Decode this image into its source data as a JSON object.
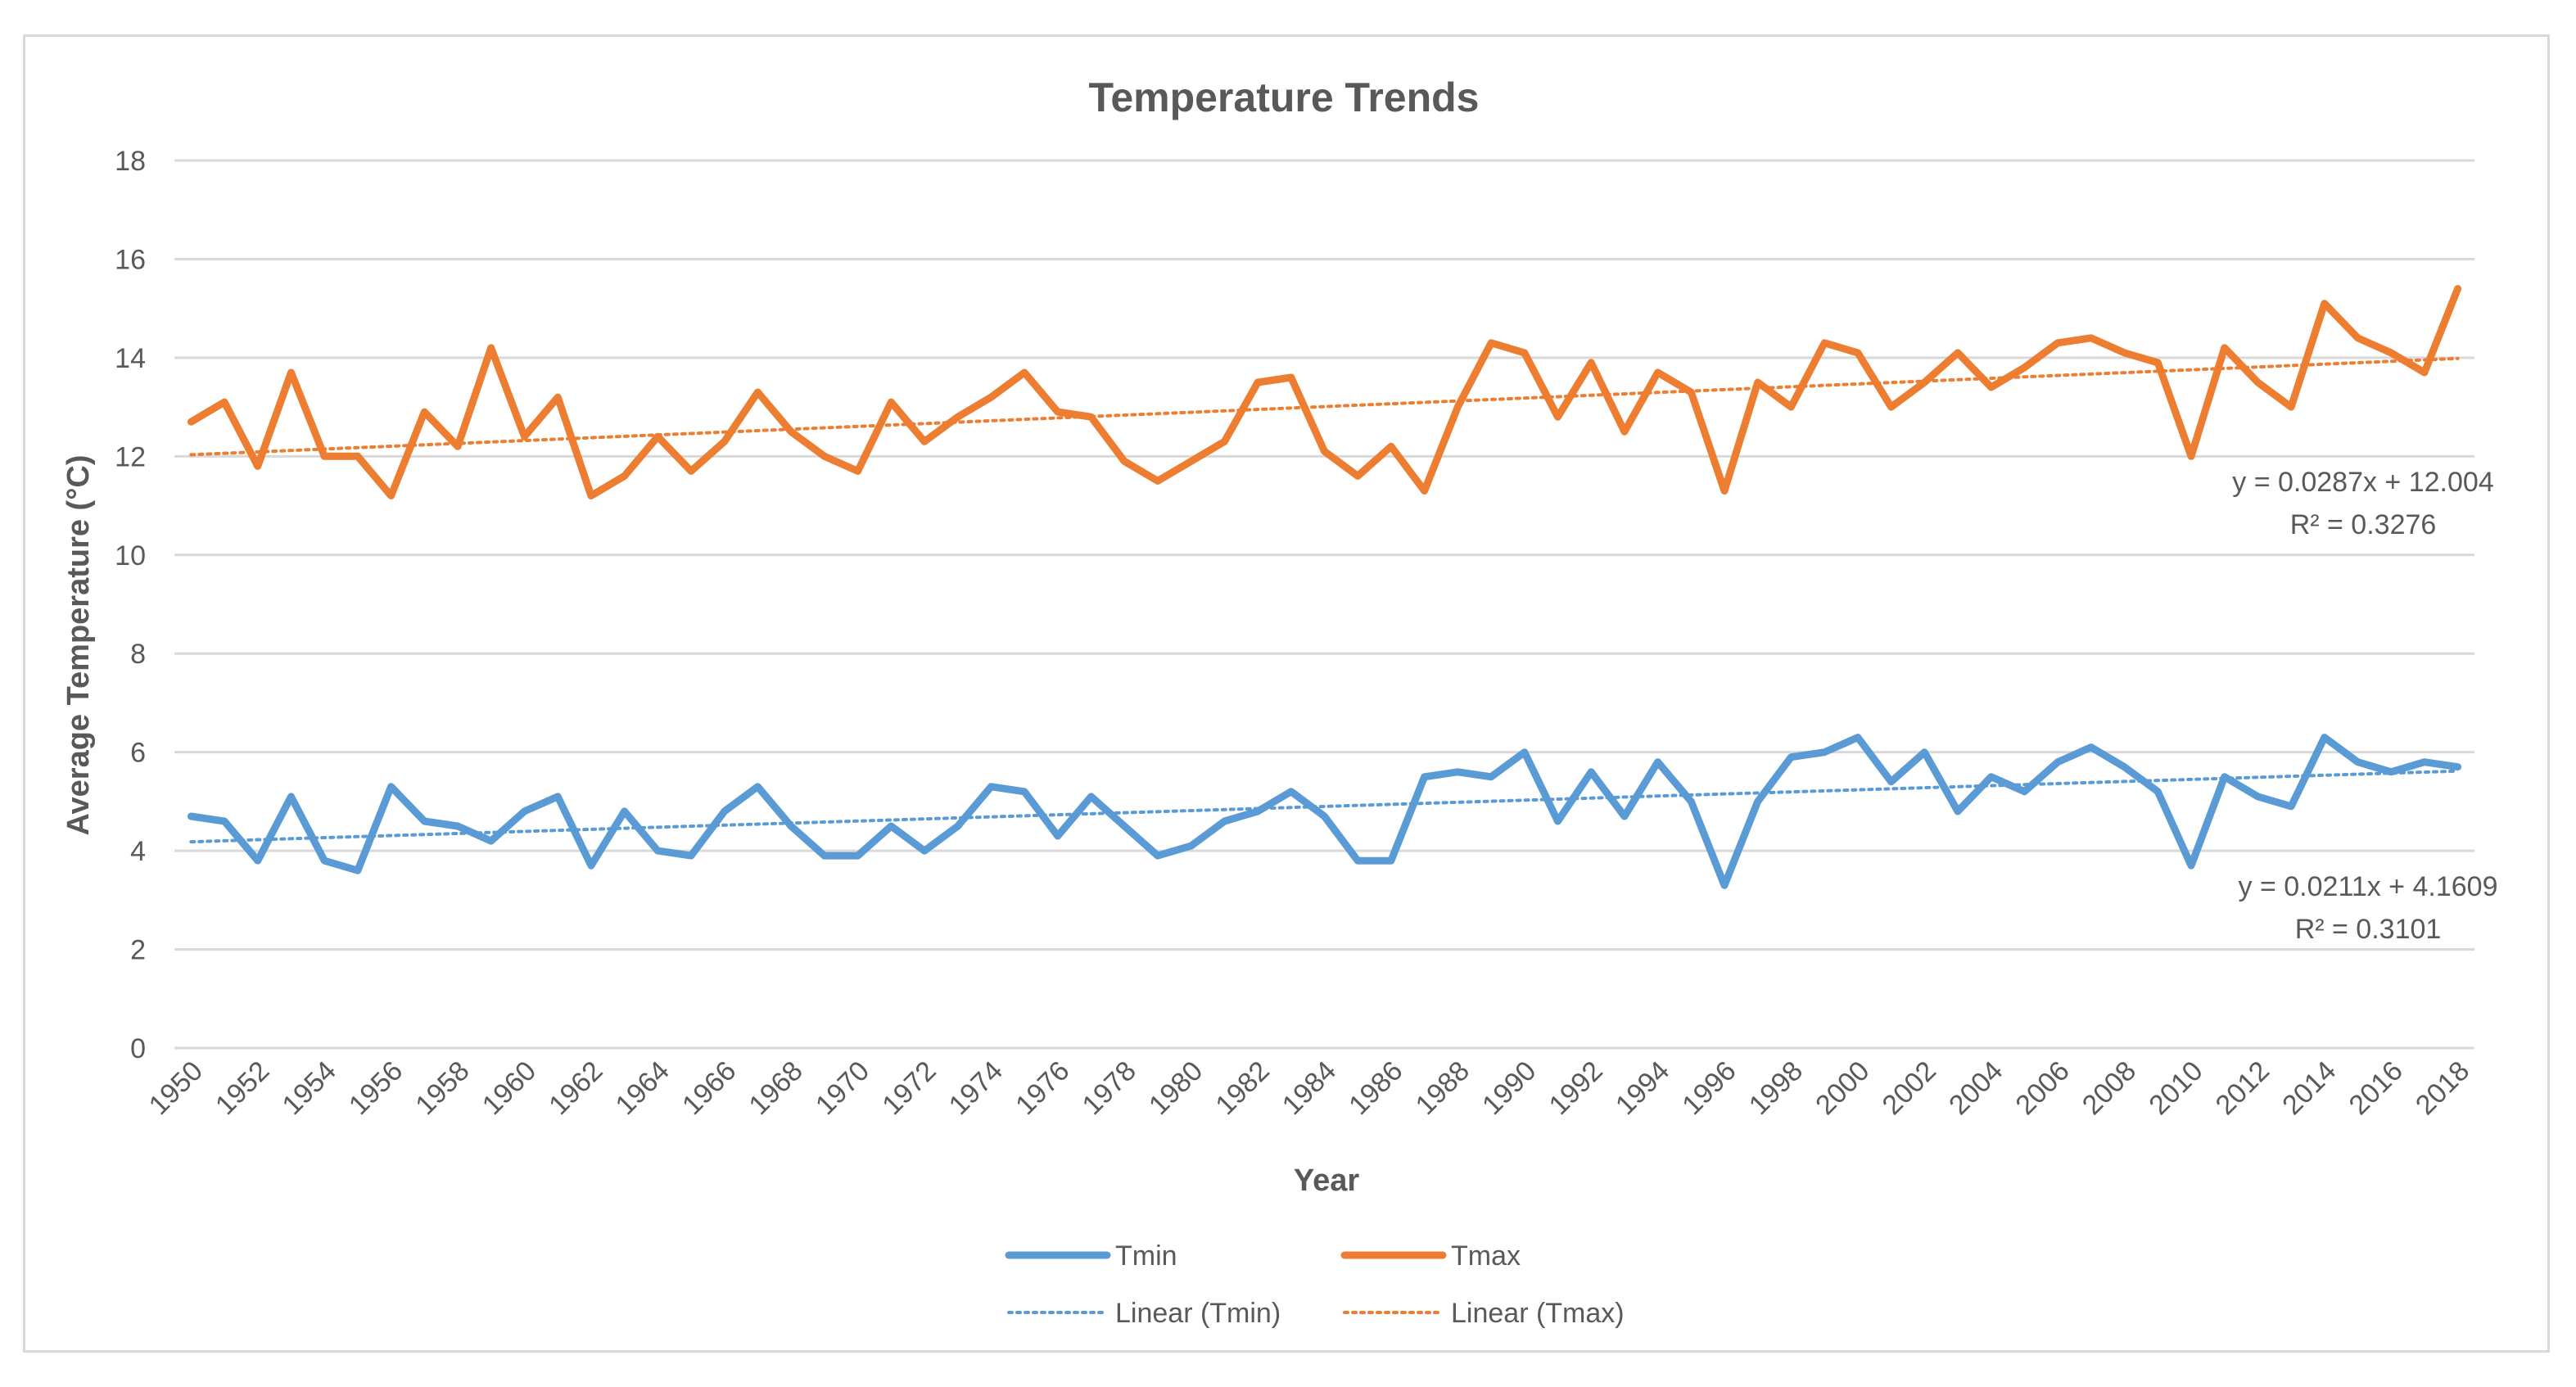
{
  "chart_data": {
    "type": "line",
    "title": "Temperature Trends",
    "xlabel": "Year",
    "ylabel": "Average Temperature (°C)",
    "ylim": [
      0,
      18
    ],
    "yticks": [
      "0",
      "2",
      "4",
      "6",
      "8",
      "10",
      "12",
      "14",
      "16",
      "18"
    ],
    "xticks": [
      "1950",
      "1952",
      "1954",
      "1956",
      "1958",
      "1960",
      "1962",
      "1964",
      "1966",
      "1968",
      "1970",
      "1972",
      "1974",
      "1976",
      "1978",
      "1980",
      "1982",
      "1984",
      "1986",
      "1988",
      "1990",
      "1992",
      "1994",
      "1996",
      "1998",
      "2000",
      "2002",
      "2004",
      "2006",
      "2008",
      "2010",
      "2012",
      "2014",
      "2016",
      "2018"
    ],
    "grid": true,
    "legend_position": "bottom",
    "x": [
      1950,
      1951,
      1952,
      1953,
      1954,
      1955,
      1956,
      1957,
      1958,
      1959,
      1960,
      1961,
      1962,
      1963,
      1964,
      1965,
      1966,
      1967,
      1968,
      1969,
      1970,
      1971,
      1972,
      1973,
      1974,
      1975,
      1976,
      1977,
      1978,
      1979,
      1980,
      1981,
      1982,
      1983,
      1984,
      1985,
      1986,
      1987,
      1988,
      1989,
      1990,
      1991,
      1992,
      1993,
      1994,
      1995,
      1996,
      1997,
      1998,
      1999,
      2000,
      2001,
      2002,
      2003,
      2004,
      2005,
      2006,
      2007,
      2008,
      2009,
      2010,
      2011,
      2012,
      2013,
      2014,
      2015,
      2016,
      2017,
      2018
    ],
    "series": [
      {
        "name": "Tmin",
        "color": "#5b9bd5",
        "values": [
          4.7,
          4.6,
          3.8,
          5.1,
          3.8,
          3.6,
          5.3,
          4.6,
          4.5,
          4.2,
          4.8,
          5.1,
          3.7,
          4.8,
          4.0,
          3.9,
          4.8,
          5.3,
          4.5,
          3.9,
          3.9,
          4.5,
          4.0,
          4.5,
          5.3,
          5.2,
          4.3,
          5.1,
          4.5,
          3.9,
          4.1,
          4.6,
          4.8,
          5.2,
          4.7,
          3.8,
          3.8,
          5.5,
          5.6,
          5.5,
          6.0,
          4.6,
          5.6,
          4.7,
          5.8,
          5.0,
          3.3,
          5.0,
          5.9,
          6.0,
          6.3,
          5.4,
          6.0,
          4.8,
          5.5,
          5.2,
          5.8,
          6.1,
          5.7,
          5.2,
          3.7,
          5.5,
          5.1,
          4.9,
          6.3,
          5.8,
          5.6,
          5.8,
          5.7
        ]
      },
      {
        "name": "Tmax",
        "color": "#ed7d31",
        "values": [
          12.7,
          13.1,
          11.8,
          13.7,
          12.0,
          12.0,
          11.2,
          12.9,
          12.2,
          14.2,
          12.4,
          13.2,
          11.2,
          11.6,
          12.4,
          11.7,
          12.3,
          13.3,
          12.5,
          12.0,
          11.7,
          13.1,
          12.3,
          12.8,
          13.2,
          13.7,
          12.9,
          12.8,
          11.9,
          11.5,
          11.9,
          12.3,
          13.5,
          13.6,
          12.1,
          11.6,
          12.2,
          11.3,
          13.0,
          14.3,
          14.1,
          12.8,
          13.9,
          12.5,
          13.7,
          13.3,
          11.3,
          13.5,
          13.0,
          14.3,
          14.1,
          13.0,
          13.5,
          14.1,
          13.4,
          13.8,
          14.3,
          14.4,
          14.1,
          13.9,
          12.0,
          14.2,
          13.5,
          13.0,
          15.1,
          14.4,
          14.1,
          13.7,
          15.4
        ]
      }
    ],
    "trendlines": [
      {
        "name": "Linear (Tmin)",
        "series": "Tmin",
        "color": "#5b9bd5",
        "slope": 0.0211,
        "intercept": 4.1609,
        "equation": "y = 0.0211x + 4.1609",
        "r2": "R² = 0.3101"
      },
      {
        "name": "Linear (Tmax)",
        "series": "Tmax",
        "color": "#ed7d31",
        "slope": 0.0287,
        "intercept": 12.004,
        "equation": "y = 0.0287x + 12.004",
        "r2": "R² = 0.3276"
      }
    ]
  }
}
